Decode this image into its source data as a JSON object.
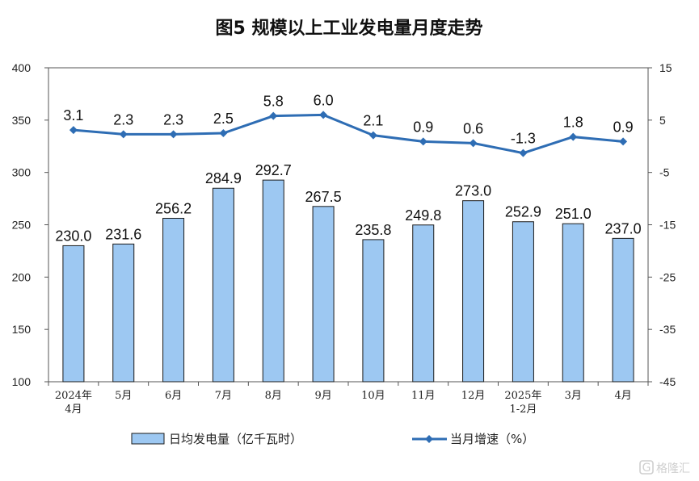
{
  "chart_data": {
    "type": "bar+line",
    "title": "图5  规模以上工业发电量月度走势",
    "categories": [
      [
        "2024年",
        "4月"
      ],
      [
        "5月"
      ],
      [
        "6月"
      ],
      [
        "7月"
      ],
      [
        "8月"
      ],
      [
        "9月"
      ],
      [
        "10月"
      ],
      [
        "11月"
      ],
      [
        "12月"
      ],
      [
        "2025年",
        "1-2月"
      ],
      [
        "3月"
      ],
      [
        "4月"
      ]
    ],
    "series": [
      {
        "name": "日均发电量（亿千瓦时）",
        "type": "bar",
        "axis": "left",
        "color": "#9dc8f2",
        "values": [
          230.0,
          231.6,
          256.2,
          284.9,
          292.7,
          267.5,
          235.8,
          249.8,
          273.0,
          252.9,
          251.0,
          237.0
        ],
        "labels": [
          "230.0",
          "231.6",
          "256.2",
          "284.9",
          "292.7",
          "267.5",
          "235.8",
          "249.8",
          "273.0",
          "252.9",
          "251.0",
          "237.0"
        ]
      },
      {
        "name": "当月增速（%）",
        "type": "line",
        "axis": "right",
        "color": "#2e6db4",
        "values": [
          3.1,
          2.3,
          2.3,
          2.5,
          5.8,
          6.0,
          2.1,
          0.9,
          0.6,
          -1.3,
          1.8,
          0.9
        ],
        "labels": [
          "3.1",
          "2.3",
          "2.3",
          "2.5",
          "5.8",
          "6.0",
          "2.1",
          "0.9",
          "0.6",
          "-1.3",
          "1.8",
          "0.9"
        ]
      }
    ],
    "y_left": {
      "min": 100,
      "max": 400,
      "ticks": [
        100,
        150,
        200,
        250,
        300,
        350,
        400
      ]
    },
    "y_right": {
      "min": -45,
      "max": 15,
      "ticks": [
        -45,
        -35,
        -25,
        -15,
        -5,
        5,
        15
      ]
    },
    "legend_position": "bottom"
  },
  "watermark": "格隆汇"
}
